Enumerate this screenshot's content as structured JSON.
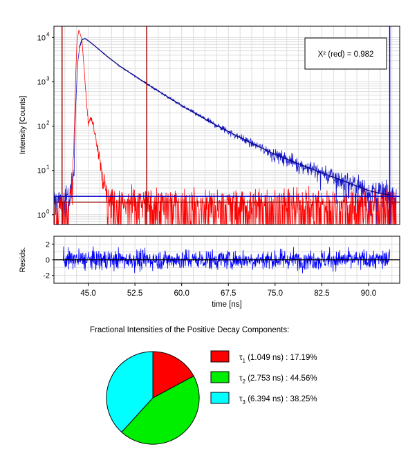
{
  "chi_box": {
    "label": "X² (red) = 0.982"
  },
  "chart_data": [
    {
      "type": "line",
      "name": "decay",
      "yscale": "log",
      "xlim": [
        39.5,
        95.0
      ],
      "ylim": [
        0.6,
        18000
      ],
      "ylabel": "Intensity [Counts]",
      "yticks": [
        1,
        10,
        100,
        1000,
        10000
      ],
      "ytick_labels": [
        {
          "base": "10",
          "exp": "0"
        },
        {
          "base": "10",
          "exp": "1"
        },
        {
          "base": "10",
          "exp": "2"
        },
        {
          "base": "10",
          "exp": "3"
        },
        {
          "base": "10",
          "exp": "4"
        }
      ],
      "grid": true,
      "markers": {
        "vertical_red": [
          40.8,
          54.4
        ],
        "vertical_blue": [
          93.4
        ],
        "horizontal_red": [
          1.9
        ],
        "horizontal_blue": [
          2.6
        ]
      },
      "series": [
        {
          "color": "#1a1acc",
          "x": [
            39.5,
            41.0,
            42.0,
            42.7,
            43.0,
            43.3,
            43.6,
            44.0,
            44.5,
            45.0,
            46.0,
            47.0,
            48.0,
            50.0,
            52.5,
            55.0,
            60.0,
            65.0,
            70.0,
            75.0,
            80.0,
            85.0,
            88.0,
            90.0,
            92.0,
            94.5
          ],
          "y": [
            2.0,
            2.0,
            2.3,
            10,
            300,
            2500,
            6000,
            9000,
            9500,
            8500,
            6600,
            5000,
            3800,
            2300,
            1350,
            800,
            290,
            115,
            50,
            23,
            12,
            6.5,
            4.5,
            3.5,
            3.0,
            2.5
          ]
        },
        {
          "color": "#000080",
          "x": [
            43.6,
            44.0,
            44.5,
            45.0,
            46.0,
            47.0,
            48.0,
            50.0,
            52.5,
            55.0,
            60.0,
            65.0,
            70.0,
            75.0,
            80.0,
            85.0,
            88.0,
            90.0,
            92.0,
            93.4
          ],
          "y": [
            6000,
            9000,
            9500,
            8500,
            6600,
            5000,
            3800,
            2300,
            1350,
            800,
            290,
            115,
            50,
            23,
            12,
            6.5,
            4.5,
            3.5,
            3.0,
            2.8
          ]
        },
        {
          "color": "#ff0000",
          "x": [
            39.5,
            41.0,
            42.0,
            42.5,
            42.8,
            43.0,
            43.2,
            43.5,
            44.0,
            44.3,
            44.6,
            45.0,
            45.4,
            45.8,
            46.3,
            47.0,
            47.5,
            48.0,
            49.0,
            50.0,
            55.0,
            60.0,
            70.0,
            80.0,
            90.0,
            94.5
          ],
          "y": [
            1.0,
            1.2,
            2.0,
            5,
            100,
            1500,
            8000,
            15000,
            9000,
            2500,
            600,
            120,
            150,
            110,
            50,
            15,
            5,
            2.5,
            1.8,
            1.6,
            1.6,
            1.5,
            1.5,
            1.5,
            1.5,
            1.5
          ]
        }
      ]
    },
    {
      "type": "line",
      "name": "residuals",
      "xlim": [
        39.5,
        95.0
      ],
      "ylim": [
        -3,
        3
      ],
      "ylabel": "Resids.",
      "xlabel": "time [ns]",
      "yticks": [
        2,
        0,
        -2
      ],
      "ytick_labels": [
        "2",
        "0",
        "-2"
      ],
      "xticks": [
        45,
        52.5,
        60,
        67.5,
        75,
        82.5,
        90
      ],
      "xtick_labels": [
        "45.0",
        "52.5",
        "60.0",
        "67.5",
        "75.0",
        "82.5",
        "90.0"
      ],
      "x_range": [
        41.0,
        93.4
      ],
      "amplitude": 3.0,
      "color": "#0000ff"
    },
    {
      "type": "pie",
      "title": "Fractional Intensities of the Positive Decay Components:",
      "slices": [
        {
          "sub": "1",
          "label": " (1.049 ns) : 17.19%",
          "value": 17.19,
          "color": "#ff0000"
        },
        {
          "sub": "2",
          "label": " (2.753 ns) : 44.56%",
          "value": 44.56,
          "color": "#00ee00"
        },
        {
          "sub": "3",
          "label": " (6.394 ns) : 38.25%",
          "value": 38.25,
          "color": "#00ffff"
        }
      ]
    }
  ]
}
